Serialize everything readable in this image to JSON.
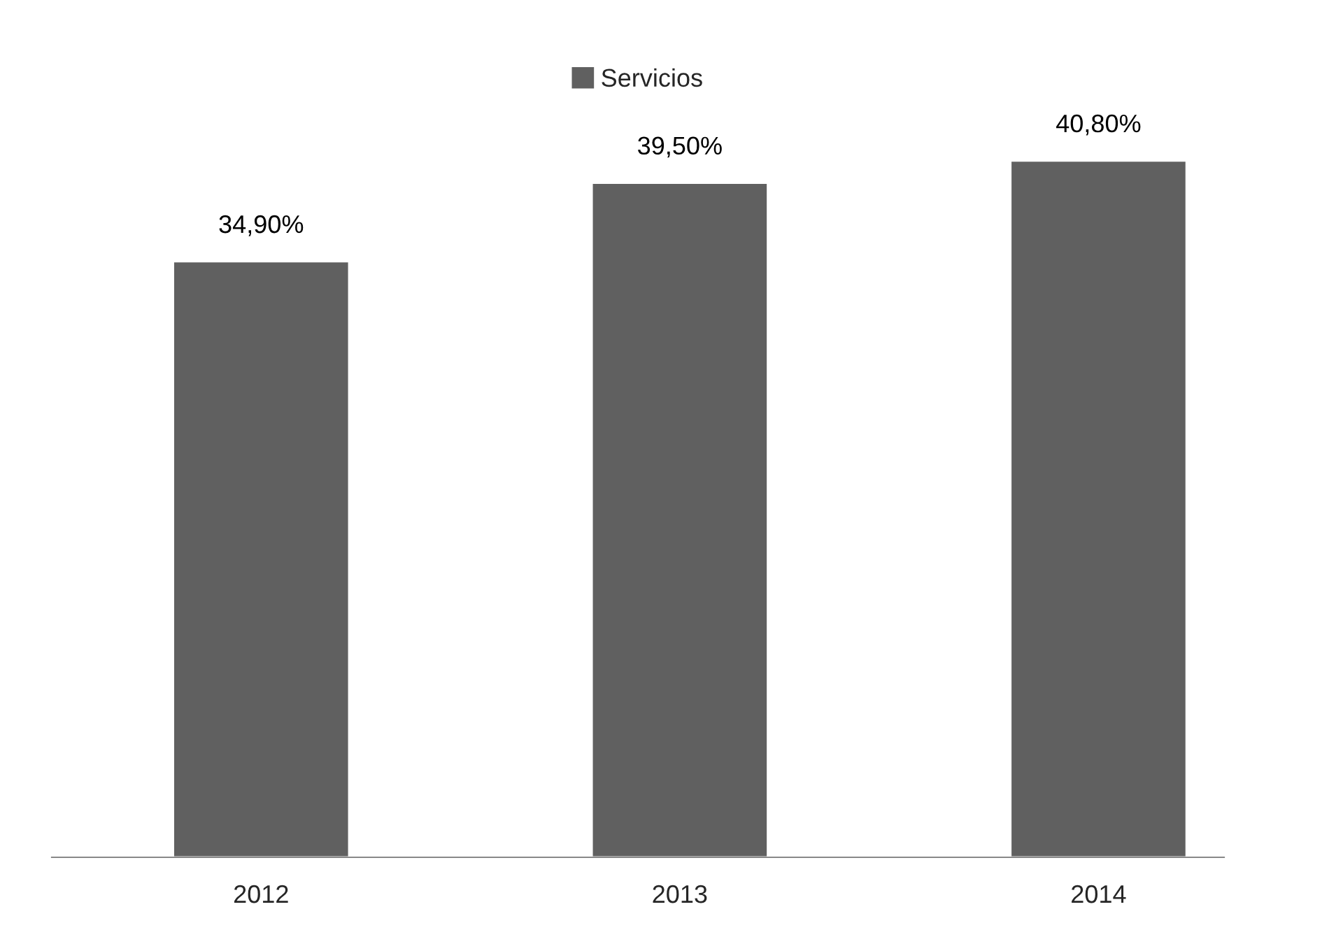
{
  "chart_data": {
    "type": "bar",
    "categories": [
      "2012",
      "2013",
      "2014"
    ],
    "series": [
      {
        "name": "Servicios",
        "color": "#606060",
        "values": [
          34.9,
          39.5,
          40.8
        ],
        "value_labels": [
          "34,90%",
          "39,50%",
          "40,80%"
        ]
      }
    ],
    "legend": "top",
    "grid": false
  }
}
